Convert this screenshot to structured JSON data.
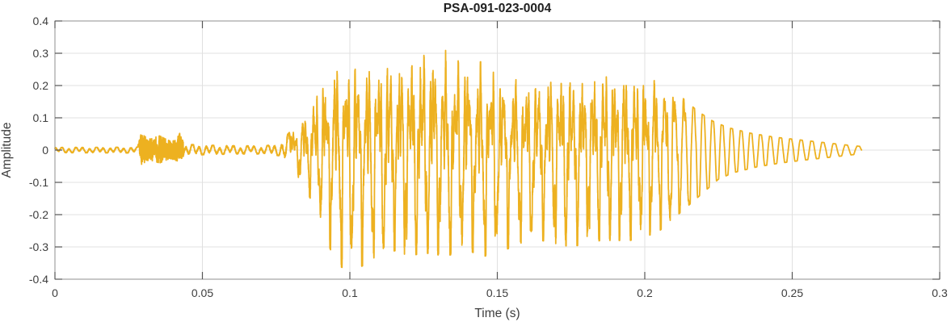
{
  "figure": {
    "title": "PSA-091-023-0004",
    "xlabel": "Time (s)",
    "ylabel": "Amplitude"
  },
  "chart_data": {
    "type": "line",
    "title": "PSA-091-023-0004",
    "xlabel": "Time (s)",
    "ylabel": "Amplitude",
    "xlim": [
      0,
      0.3
    ],
    "ylim": [
      -0.4,
      0.4
    ],
    "xticks": [
      0,
      0.05,
      0.1,
      0.15,
      0.2,
      0.25,
      0.3
    ],
    "xtick_labels": [
      "0",
      "0.05",
      "0.1",
      "0.15",
      "0.2",
      "0.25",
      "0.3"
    ],
    "yticks": [
      -0.4,
      -0.3,
      -0.2,
      -0.1,
      0,
      0.1,
      0.2,
      0.3,
      0.4
    ],
    "ytick_labels": [
      "-0.4",
      "-0.3",
      "-0.2",
      "-0.1",
      "0",
      "0.1",
      "0.2",
      "0.3",
      "0.4"
    ],
    "grid": true,
    "legend": "none",
    "colors": {
      "line": "#EDB120",
      "grid": "#E0E0E0",
      "frame": "#8F8F8F",
      "tick": "#555555",
      "text": "#3d3d3d",
      "title": "#212121",
      "background": "#FFFFFF"
    },
    "series": [
      {
        "name": "PSA-091-023-0004 waveform",
        "color": "#EDB120",
        "description": "Speech-like audio waveform: near-silence 0-0.028 s, small noise burst 0.029-0.044 s (about +/-0.05), quiet 0.044-0.078 s, voiced segment from 0.080 s with peak amplitude +0.355 near t=0.129 s and -0.37 near t=0.10 s, decay after 0.205 s into a smooth sinusoidal tail ending at t=0.273 s",
        "signal": {
          "t_end": 0.2735,
          "samples": 9000,
          "f0_hz": 272,
          "idle_freq_hz": 430,
          "burst": [
            0.0285,
            0.0435
          ],
          "voice_start": 0.08,
          "harmonic_fade": [
            0.198,
            0.218
          ],
          "seed": 77,
          "peak_amplitude": 0.355,
          "min_amplitude": -0.37,
          "envelope_pos": [
            [
              0.0,
              0.008
            ],
            [
              0.028,
              0.009
            ],
            [
              0.0292,
              0.05
            ],
            [
              0.032,
              0.034
            ],
            [
              0.0355,
              0.044
            ],
            [
              0.039,
              0.028
            ],
            [
              0.041,
              0.03
            ],
            [
              0.0425,
              0.055
            ],
            [
              0.044,
              0.018
            ],
            [
              0.052,
              0.015
            ],
            [
              0.062,
              0.013
            ],
            [
              0.071,
              0.013
            ],
            [
              0.0765,
              0.02
            ],
            [
              0.079,
              0.05
            ],
            [
              0.081,
              0.07
            ],
            [
              0.084,
              0.11
            ],
            [
              0.087,
              0.16
            ],
            [
              0.09,
              0.22
            ],
            [
              0.093,
              0.27
            ],
            [
              0.096,
              0.29
            ],
            [
              0.101,
              0.29
            ],
            [
              0.106,
              0.29
            ],
            [
              0.111,
              0.3
            ],
            [
              0.116,
              0.3
            ],
            [
              0.121,
              0.32
            ],
            [
              0.1255,
              0.34
            ],
            [
              0.1285,
              0.355
            ],
            [
              0.132,
              0.31
            ],
            [
              0.136,
              0.3
            ],
            [
              0.14,
              0.31
            ],
            [
              0.144,
              0.29
            ],
            [
              0.148,
              0.27
            ],
            [
              0.153,
              0.25
            ],
            [
              0.158,
              0.23
            ],
            [
              0.163,
              0.24
            ],
            [
              0.168,
              0.26
            ],
            [
              0.173,
              0.27
            ],
            [
              0.178,
              0.25
            ],
            [
              0.183,
              0.26
            ],
            [
              0.188,
              0.28
            ],
            [
              0.193,
              0.27
            ],
            [
              0.198,
              0.24
            ],
            [
              0.203,
              0.23
            ],
            [
              0.208,
              0.2
            ],
            [
              0.213,
              0.16
            ],
            [
              0.218,
              0.12
            ],
            [
              0.223,
              0.09
            ],
            [
              0.228,
              0.07
            ],
            [
              0.236,
              0.052
            ],
            [
              0.244,
              0.04
            ],
            [
              0.252,
              0.032
            ],
            [
              0.26,
              0.024
            ],
            [
              0.267,
              0.017
            ],
            [
              0.2735,
              0.011
            ]
          ],
          "envelope_neg": [
            [
              0.0,
              0.008
            ],
            [
              0.028,
              0.009
            ],
            [
              0.0292,
              0.045
            ],
            [
              0.032,
              0.03
            ],
            [
              0.0355,
              0.04
            ],
            [
              0.039,
              0.026
            ],
            [
              0.042,
              0.035
            ],
            [
              0.044,
              0.016
            ],
            [
              0.052,
              0.014
            ],
            [
              0.062,
              0.012
            ],
            [
              0.071,
              0.012
            ],
            [
              0.0765,
              0.018
            ],
            [
              0.079,
              0.04
            ],
            [
              0.081,
              0.06
            ],
            [
              0.0835,
              0.1
            ],
            [
              0.086,
              0.14
            ],
            [
              0.0885,
              0.18
            ],
            [
              0.091,
              0.25
            ],
            [
              0.0935,
              0.31
            ],
            [
              0.096,
              0.36
            ],
            [
              0.1,
              0.37
            ],
            [
              0.104,
              0.36
            ],
            [
              0.108,
              0.34
            ],
            [
              0.112,
              0.32
            ],
            [
              0.116,
              0.31
            ],
            [
              0.12,
              0.33
            ],
            [
              0.124,
              0.32
            ],
            [
              0.128,
              0.32
            ],
            [
              0.132,
              0.33
            ],
            [
              0.136,
              0.32
            ],
            [
              0.14,
              0.31
            ],
            [
              0.145,
              0.33
            ],
            [
              0.15,
              0.32
            ],
            [
              0.155,
              0.3
            ],
            [
              0.16,
              0.28
            ],
            [
              0.165,
              0.28
            ],
            [
              0.17,
              0.29
            ],
            [
              0.175,
              0.3
            ],
            [
              0.18,
              0.29
            ],
            [
              0.185,
              0.28
            ],
            [
              0.19,
              0.28
            ],
            [
              0.195,
              0.28
            ],
            [
              0.2,
              0.27
            ],
            [
              0.205,
              0.25
            ],
            [
              0.21,
              0.21
            ],
            [
              0.215,
              0.17
            ],
            [
              0.22,
              0.13
            ],
            [
              0.225,
              0.09
            ],
            [
              0.23,
              0.07
            ],
            [
              0.238,
              0.052
            ],
            [
              0.246,
              0.04
            ],
            [
              0.254,
              0.031
            ],
            [
              0.262,
              0.023
            ],
            [
              0.268,
              0.017
            ],
            [
              0.2735,
              0.011
            ]
          ]
        }
      }
    ]
  }
}
